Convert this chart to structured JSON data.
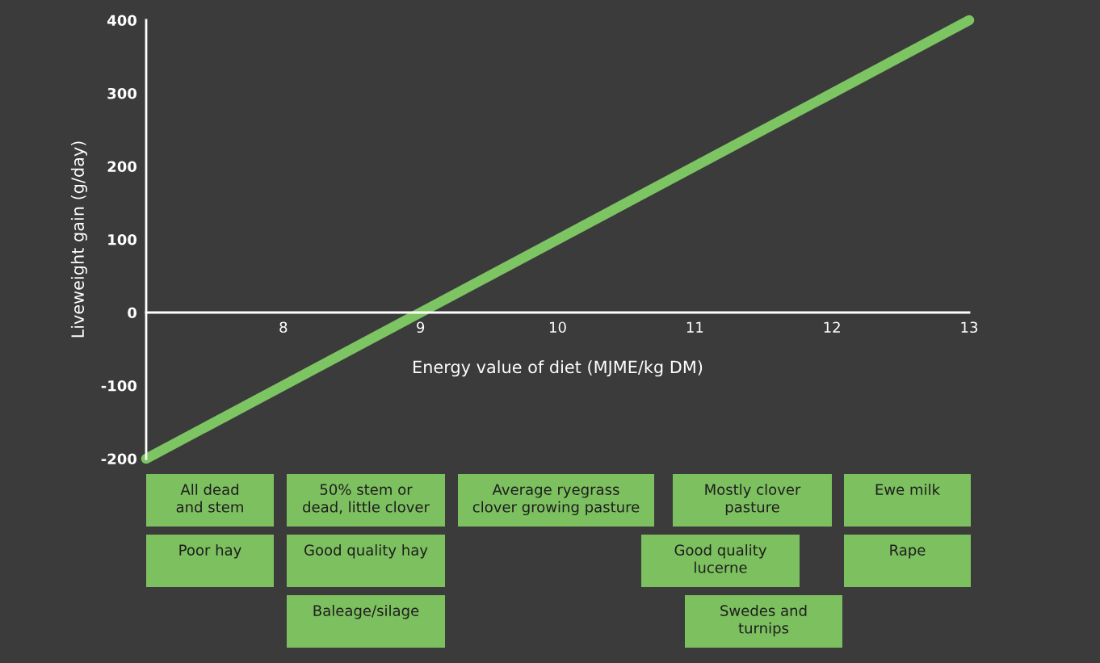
{
  "chart_data": {
    "type": "line",
    "xlabel": "Energy value of diet (MJME/kg DM)",
    "ylabel": "Liveweight gain (g/day)",
    "x": [
      7,
      13
    ],
    "series": [
      {
        "color": "#7dc463",
        "values": [
          -200,
          400
        ]
      }
    ],
    "xlim": [
      7,
      13
    ],
    "xticks": [
      8,
      9,
      10,
      11,
      12,
      13
    ],
    "ylim": [
      -200,
      400
    ],
    "yticks": [
      -200,
      -100,
      0,
      100,
      200,
      300,
      400
    ],
    "grid": false,
    "legend": false,
    "line_style": "solid",
    "annotations": [
      "All dead\nand stem",
      "50% stem or\ndead, little clover",
      "Average ryegrass\nclover growing pasture",
      "Mostly clover\npasture",
      "Ewe milk",
      "Poor hay",
      "Good quality hay",
      "Good quality\nlucerne",
      "Rape",
      "Baleage/silage",
      "Swedes and\nturnips"
    ]
  }
}
